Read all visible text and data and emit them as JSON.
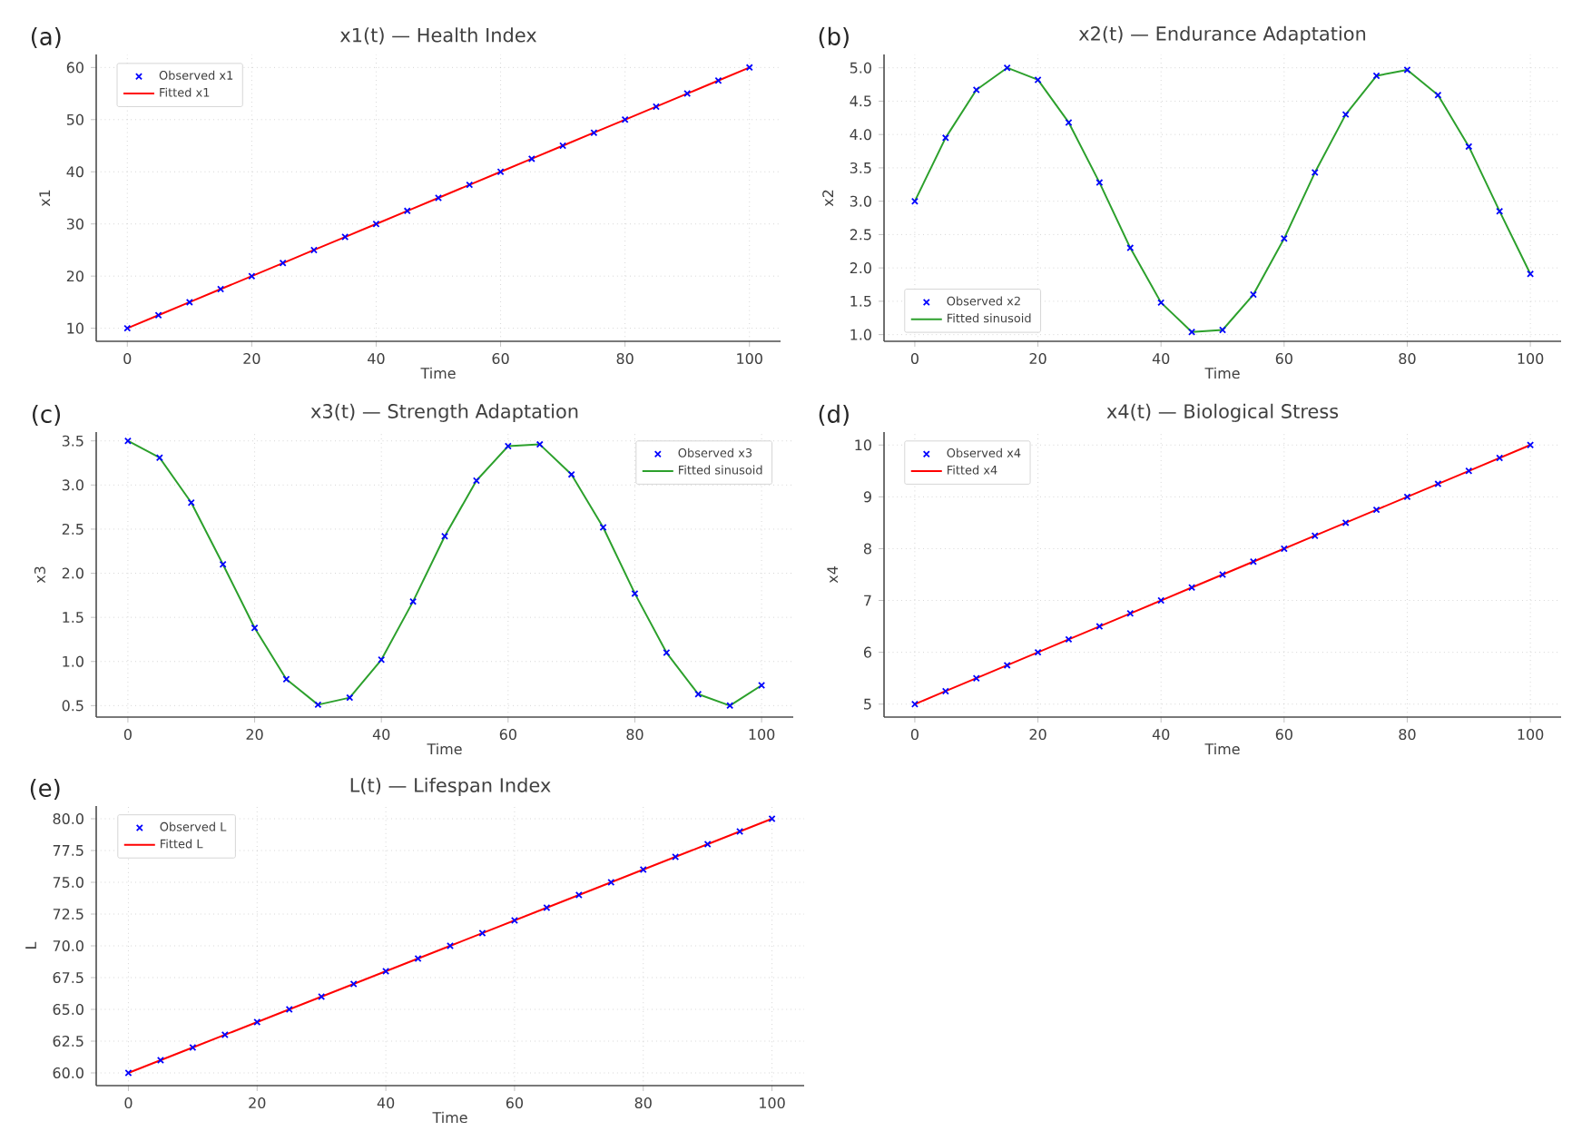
{
  "chart_data": [
    {
      "type": "scatter",
      "title": "x1(t) — Health Index",
      "xlabel": "Time",
      "ylabel": "x1",
      "annotations": [
        "(a)"
      ],
      "x": [
        0,
        5,
        10,
        15,
        20,
        25,
        30,
        35,
        40,
        45,
        50,
        55,
        60,
        65,
        70,
        75,
        80,
        85,
        90,
        95,
        100
      ],
      "series": [
        {
          "name": "Observed x1",
          "color": "#0000ff",
          "marker": "cross",
          "values": [
            10,
            12.5,
            15,
            17.5,
            20,
            22.5,
            25,
            27.5,
            30,
            32.5,
            35,
            37.5,
            40,
            42.5,
            45,
            47.5,
            50,
            52.5,
            55,
            57.5,
            60
          ]
        },
        {
          "name": "Fitted x1",
          "type": "line",
          "color": "#ff0000",
          "values": [
            10,
            12.5,
            15,
            17.5,
            20,
            22.5,
            25,
            27.5,
            30,
            32.5,
            35,
            37.5,
            40,
            42.5,
            45,
            47.5,
            50,
            52.5,
            55,
            57.5,
            60
          ]
        }
      ],
      "xlim": [
        -5,
        105
      ],
      "ylim": [
        7.5,
        62.5
      ],
      "xticks": [
        0,
        20,
        40,
        60,
        80,
        100
      ],
      "yticks": [
        10,
        20,
        30,
        40,
        50,
        60
      ],
      "grid": true,
      "legend": "top left"
    },
    {
      "type": "scatter",
      "title": "x2(t) — Endurance Adaptation",
      "xlabel": "Time",
      "ylabel": "x2",
      "annotations": [
        "(b)"
      ],
      "x": [
        0,
        5,
        10,
        15,
        20,
        25,
        30,
        35,
        40,
        45,
        50,
        55,
        60,
        65,
        70,
        75,
        80,
        85,
        90,
        95,
        100
      ],
      "series": [
        {
          "name": "Observed x2",
          "color": "#0000ff",
          "marker": "cross",
          "values": [
            3.0,
            3.95,
            4.67,
            5.0,
            4.82,
            4.18,
            3.28,
            2.3,
            1.48,
            1.04,
            1.07,
            1.6,
            2.44,
            3.43,
            4.3,
            4.88,
            4.97,
            4.59,
            3.82,
            2.85,
            1.91
          ]
        },
        {
          "name": "Fitted sinusoid",
          "type": "line",
          "color": "#2ca02c",
          "values": [
            3.0,
            3.95,
            4.67,
            5.0,
            4.82,
            4.18,
            3.28,
            2.3,
            1.48,
            1.04,
            1.07,
            1.6,
            2.44,
            3.43,
            4.3,
            4.88,
            4.97,
            4.59,
            3.82,
            2.85,
            1.91
          ]
        }
      ],
      "xlim": [
        -5,
        105
      ],
      "ylim": [
        0.9,
        5.2
      ],
      "xticks": [
        0,
        20,
        40,
        60,
        80,
        100
      ],
      "yticks": [
        {
          "value": 1,
          "label": "1.0"
        },
        1.5,
        {
          "value": 2,
          "label": "2.0"
        },
        2.5,
        {
          "value": 3,
          "label": "3.0"
        },
        3.5,
        {
          "value": 4,
          "label": "4.0"
        },
        4.5,
        {
          "value": 5,
          "label": "5.0"
        }
      ],
      "grid": true,
      "legend": "bottom left"
    },
    {
      "type": "scatter",
      "title": "x3(t) — Strength Adaptation",
      "xlabel": "Time",
      "ylabel": "x3",
      "annotations": [
        "(c)"
      ],
      "x": [
        0,
        5,
        10,
        15,
        20,
        25,
        30,
        35,
        40,
        45,
        50,
        55,
        60,
        65,
        70,
        75,
        80,
        85,
        90,
        95,
        100
      ],
      "series": [
        {
          "name": "Observed x3",
          "color": "#0000ff",
          "marker": "cross",
          "values": [
            3.5,
            3.31,
            2.8,
            2.1,
            1.38,
            0.8,
            0.51,
            0.59,
            1.02,
            1.68,
            2.42,
            3.05,
            3.44,
            3.46,
            3.12,
            2.52,
            1.77,
            1.1,
            0.63,
            0.5,
            0.73
          ]
        },
        {
          "name": "Fitted sinusoid",
          "type": "line",
          "color": "#2ca02c",
          "values": [
            3.5,
            3.31,
            2.8,
            2.1,
            1.38,
            0.8,
            0.51,
            0.59,
            1.02,
            1.68,
            2.42,
            3.05,
            3.44,
            3.46,
            3.12,
            2.52,
            1.77,
            1.1,
            0.63,
            0.5,
            0.73
          ]
        }
      ],
      "xlim": [
        -5,
        105
      ],
      "ylim": [
        0.37,
        3.6
      ],
      "xticks": [
        0,
        20,
        40,
        60,
        80,
        100
      ],
      "yticks": [
        0.5,
        {
          "value": 1,
          "label": "1.0"
        },
        1.5,
        {
          "value": 2,
          "label": "2.0"
        },
        2.5,
        {
          "value": 3,
          "label": "3.0"
        },
        3.5
      ],
      "grid": true,
      "legend": "top right"
    },
    {
      "type": "scatter",
      "title": "x4(t) — Biological Stress",
      "xlabel": "Time",
      "ylabel": "x4",
      "annotations": [
        "(d)"
      ],
      "x": [
        0,
        5,
        10,
        15,
        20,
        25,
        30,
        35,
        40,
        45,
        50,
        55,
        60,
        65,
        70,
        75,
        80,
        85,
        90,
        95,
        100
      ],
      "series": [
        {
          "name": "Observed x4",
          "color": "#0000ff",
          "marker": "cross",
          "values": [
            5,
            5.25,
            5.5,
            5.75,
            6,
            6.25,
            6.5,
            6.75,
            7,
            7.25,
            7.5,
            7.75,
            8,
            8.25,
            8.5,
            8.75,
            9,
            9.25,
            9.5,
            9.75,
            10
          ]
        },
        {
          "name": "Fitted x4",
          "type": "line",
          "color": "#ff0000",
          "values": [
            5,
            5.25,
            5.5,
            5.75,
            6,
            6.25,
            6.5,
            6.75,
            7,
            7.25,
            7.5,
            7.75,
            8,
            8.25,
            8.5,
            8.75,
            9,
            9.25,
            9.5,
            9.75,
            10
          ]
        }
      ],
      "xlim": [
        -5,
        105
      ],
      "ylim": [
        4.75,
        10.25
      ],
      "xticks": [
        0,
        20,
        40,
        60,
        80,
        100
      ],
      "yticks": [
        5,
        6,
        7,
        8,
        9,
        10
      ],
      "grid": true,
      "legend": "top left"
    },
    {
      "type": "scatter",
      "title": "L(t) — Lifespan Index",
      "xlabel": "Time",
      "ylabel": "L",
      "annotations": [
        "(e)"
      ],
      "x": [
        0,
        5,
        10,
        15,
        20,
        25,
        30,
        35,
        40,
        45,
        50,
        55,
        60,
        65,
        70,
        75,
        80,
        85,
        90,
        95,
        100
      ],
      "series": [
        {
          "name": "Observed L",
          "color": "#0000ff",
          "marker": "cross",
          "values": [
            60,
            61,
            62,
            63,
            64,
            65,
            66,
            67,
            68,
            69,
            70,
            71,
            72,
            73,
            74,
            75,
            76,
            77,
            78,
            79,
            80
          ]
        },
        {
          "name": "Fitted L",
          "type": "line",
          "color": "#ff0000",
          "values": [
            60,
            61,
            62,
            63,
            64,
            65,
            66,
            67,
            68,
            69,
            70,
            71,
            72,
            73,
            74,
            75,
            76,
            77,
            78,
            79,
            80
          ]
        }
      ],
      "xlim": [
        -5,
        105
      ],
      "ylim": [
        59,
        81
      ],
      "xticks": [
        0,
        20,
        40,
        60,
        80,
        100
      ],
      "yticks": [
        {
          "value": 60,
          "label": "60.0"
        },
        {
          "value": 62.5,
          "label": "62.5"
        },
        {
          "value": 65,
          "label": "65.0"
        },
        {
          "value": 67.5,
          "label": "67.5"
        },
        {
          "value": 70,
          "label": "70.0"
        },
        {
          "value": 72.5,
          "label": "72.5"
        },
        {
          "value": 75,
          "label": "75.0"
        },
        {
          "value": 77.5,
          "label": "77.5"
        },
        {
          "value": 80,
          "label": "80.0"
        }
      ],
      "grid": true,
      "legend": "top left"
    }
  ]
}
